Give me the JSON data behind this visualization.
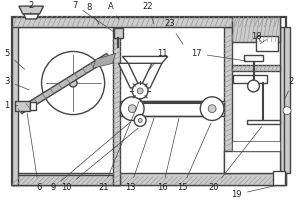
{
  "bg_color": "#e8e8e8",
  "line_color": "#444444",
  "lw_main": 1.0,
  "lw_thin": 0.5,
  "lw_thick": 1.6,
  "label_fontsize": 6.0,
  "title_color": "#222222",
  "hatch_color": "#888888",
  "wall_fc": "#cccccc"
}
